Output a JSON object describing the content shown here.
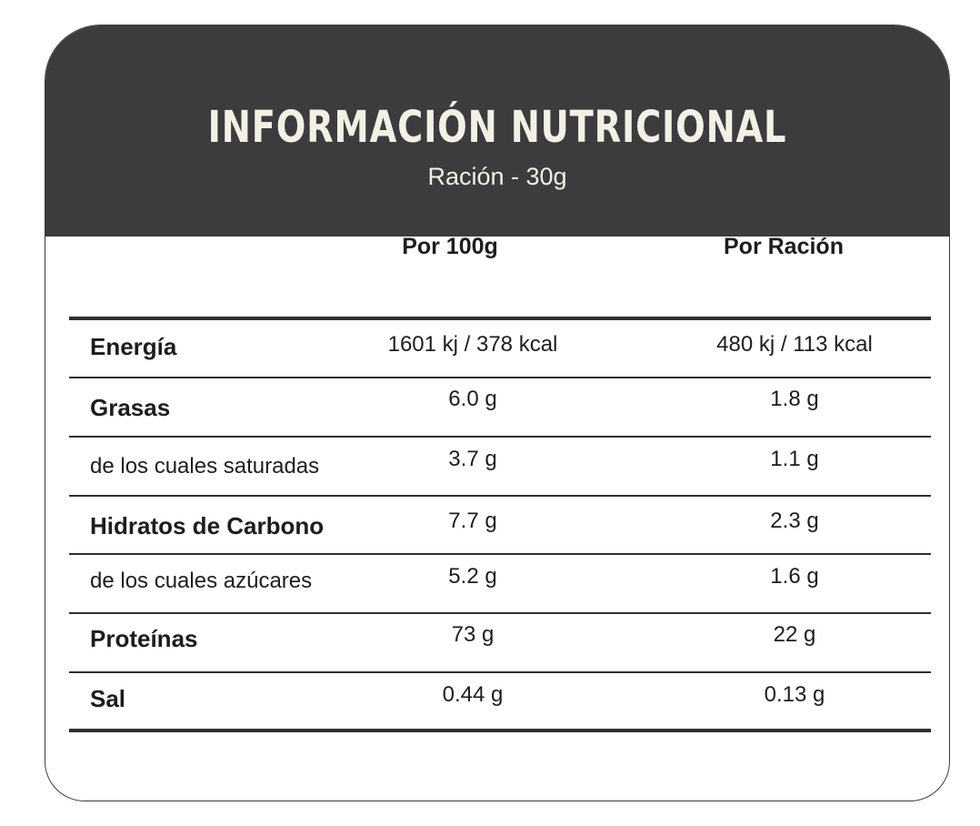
{
  "header": {
    "title": "INFORMACIÓN NUTRICIONAL",
    "subtitle": "Ración - 30g"
  },
  "columns": [
    "Por 100g",
    "Por Ración"
  ],
  "rows": [
    {
      "label": "Energía",
      "per100g": "1601 kj / 378 kcal",
      "perServing": "480 kj / 113 kcal",
      "bold": true
    },
    {
      "label": "Grasas",
      "per100g": "6.0 g",
      "perServing": "1.8 g",
      "bold": true
    },
    {
      "label": "de los cuales saturadas",
      "per100g": "3.7 g",
      "perServing": "1.1 g",
      "bold": false
    },
    {
      "label": "Hidratos de Carbono",
      "per100g": "7.7 g",
      "perServing": "2.3 g",
      "bold": true
    },
    {
      "label": "de los cuales azúcares",
      "per100g": "5.2 g",
      "perServing": "1.6 g",
      "bold": false
    },
    {
      "label": "Proteínas",
      "per100g": "73 g",
      "perServing": "22 g",
      "bold": true
    },
    {
      "label": "Sal",
      "per100g": "0.44 g",
      "perServing": "0.13 g",
      "bold": true
    }
  ],
  "colors": {
    "header_bg": "#3c3b3d",
    "header_text": "#f3f1e6",
    "text": "#1d1d1f",
    "rule": "#2e2e30"
  }
}
